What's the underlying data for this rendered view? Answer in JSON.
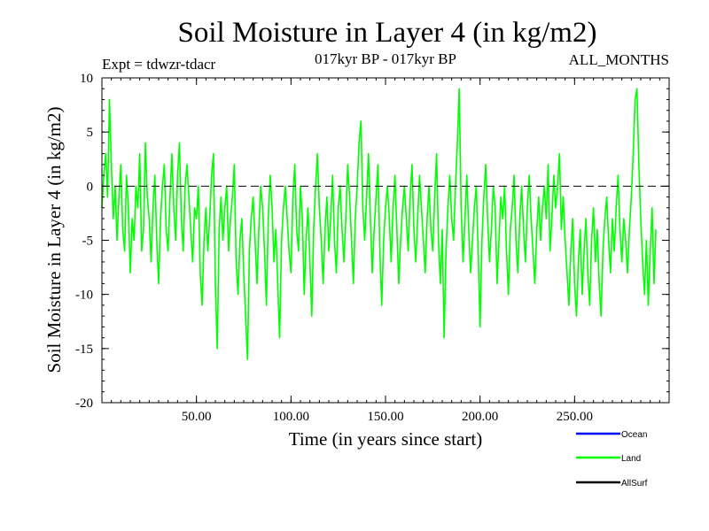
{
  "chart_data": {
    "type": "line",
    "title": "Soil Moisture in Layer 4 (in kg/m2)",
    "subtitle_left": "Expt = tdwzr-tdacr",
    "subtitle_center": "017kyr BP - 017kyr BP",
    "subtitle_right": "ALL_MONTHS",
    "xlabel": "Time (in years since start)",
    "ylabel": "Soil Moisture in Layer 4 (in kg/m2)",
    "xlim": [
      0,
      300
    ],
    "ylim": [
      -20,
      10
    ],
    "x_ticks": [
      50,
      100,
      150,
      200,
      250
    ],
    "x_tick_labels": [
      "50.00",
      "100.00",
      "150.00",
      "200.00",
      "250.00"
    ],
    "y_ticks": [
      -20,
      -15,
      -10,
      -5,
      0,
      5,
      10
    ],
    "y_tick_labels": [
      "-20",
      "-15",
      "-10",
      "-5",
      "0",
      "5",
      "10"
    ],
    "reference_line_y": 0,
    "colors": {
      "ocean": "#0000ff",
      "land": "#00ff00",
      "allsurf": "#000000"
    },
    "legend": [
      "Ocean",
      "Land",
      "AllSurf"
    ],
    "series": [
      {
        "name": "Land",
        "color": "#00ff00",
        "x_start": 0,
        "x_step": 1,
        "values": [
          -2,
          1,
          3,
          -1,
          8,
          2,
          -3,
          0,
          -5,
          -1,
          2,
          -4,
          -6,
          1,
          -2,
          -8,
          -3,
          -5,
          0,
          -2,
          3,
          -6,
          -4,
          4,
          -1,
          -3,
          -7,
          -2,
          1,
          -5,
          -9,
          -3,
          0,
          2,
          -4,
          -6,
          -1,
          3,
          -2,
          -5,
          1,
          4,
          -3,
          -6,
          0,
          2,
          -1,
          -4,
          -7,
          -2,
          -3,
          0,
          -8,
          -11,
          -5,
          -2,
          -6,
          -3,
          1,
          3,
          -9,
          -15,
          -4,
          -1,
          -5,
          -2,
          0,
          -6,
          -3,
          -1,
          2,
          -7,
          -10,
          -5,
          -3,
          -8,
          -12,
          -16,
          -6,
          -3,
          -1,
          -5,
          -9,
          -4,
          0,
          -2,
          -6,
          -11,
          -3,
          1,
          -2,
          -7,
          -4,
          -9,
          -14,
          -5,
          -2,
          0,
          -3,
          -6,
          -8,
          -1,
          2,
          -4,
          -6,
          0,
          -3,
          -10,
          -5,
          -2,
          -7,
          -12,
          -4,
          0,
          3,
          -2,
          -5,
          -9,
          -4,
          -1,
          -6,
          -3,
          1,
          -5,
          -8,
          -2,
          0,
          -4,
          -7,
          -3,
          2,
          -1,
          -5,
          -9,
          -3,
          0,
          4,
          6,
          -2,
          -5,
          -1,
          3,
          -3,
          -8,
          -4,
          -1,
          2,
          -6,
          -11,
          -5,
          -2,
          0,
          -3,
          -7,
          -2,
          1,
          -4,
          -9,
          -5,
          -2,
          0,
          -3,
          -6,
          -1,
          2,
          -4,
          -7,
          -3,
          1,
          -2,
          -5,
          -8,
          -3,
          0,
          -4,
          -6,
          -1,
          3,
          -5,
          -9,
          -4,
          -14,
          -6,
          -2,
          1,
          -3,
          -5,
          0,
          4,
          9,
          -2,
          -7,
          -3,
          1,
          -4,
          -8,
          -5,
          -2,
          0,
          -6,
          -13,
          -5,
          -1,
          2,
          -3,
          -7,
          -4,
          0,
          -2,
          -9,
          -5,
          -1,
          -3,
          0,
          -6,
          -10,
          -4,
          -2,
          1,
          -5,
          -8,
          -3,
          0,
          -4,
          -7,
          -2,
          1,
          -3,
          -6,
          -9,
          -4,
          -1,
          -5,
          -2,
          0,
          -3,
          2,
          -6,
          -3,
          1,
          -2,
          0,
          3,
          -4,
          -1,
          -5,
          -8,
          -11,
          -6,
          -3,
          -9,
          -12,
          -7,
          -4,
          -10,
          -6,
          -3,
          -8,
          -11,
          -5,
          -2,
          -7,
          -4,
          -9,
          -12,
          -6,
          -3,
          -1,
          -5,
          -8,
          -3,
          -6,
          -2,
          1,
          -4,
          -7,
          -3,
          -5,
          -8,
          -4,
          -1,
          3,
          8,
          9,
          2,
          -3,
          -7,
          -10,
          -5,
          -11,
          -6,
          -2,
          -9,
          -4
        ]
      }
    ]
  }
}
